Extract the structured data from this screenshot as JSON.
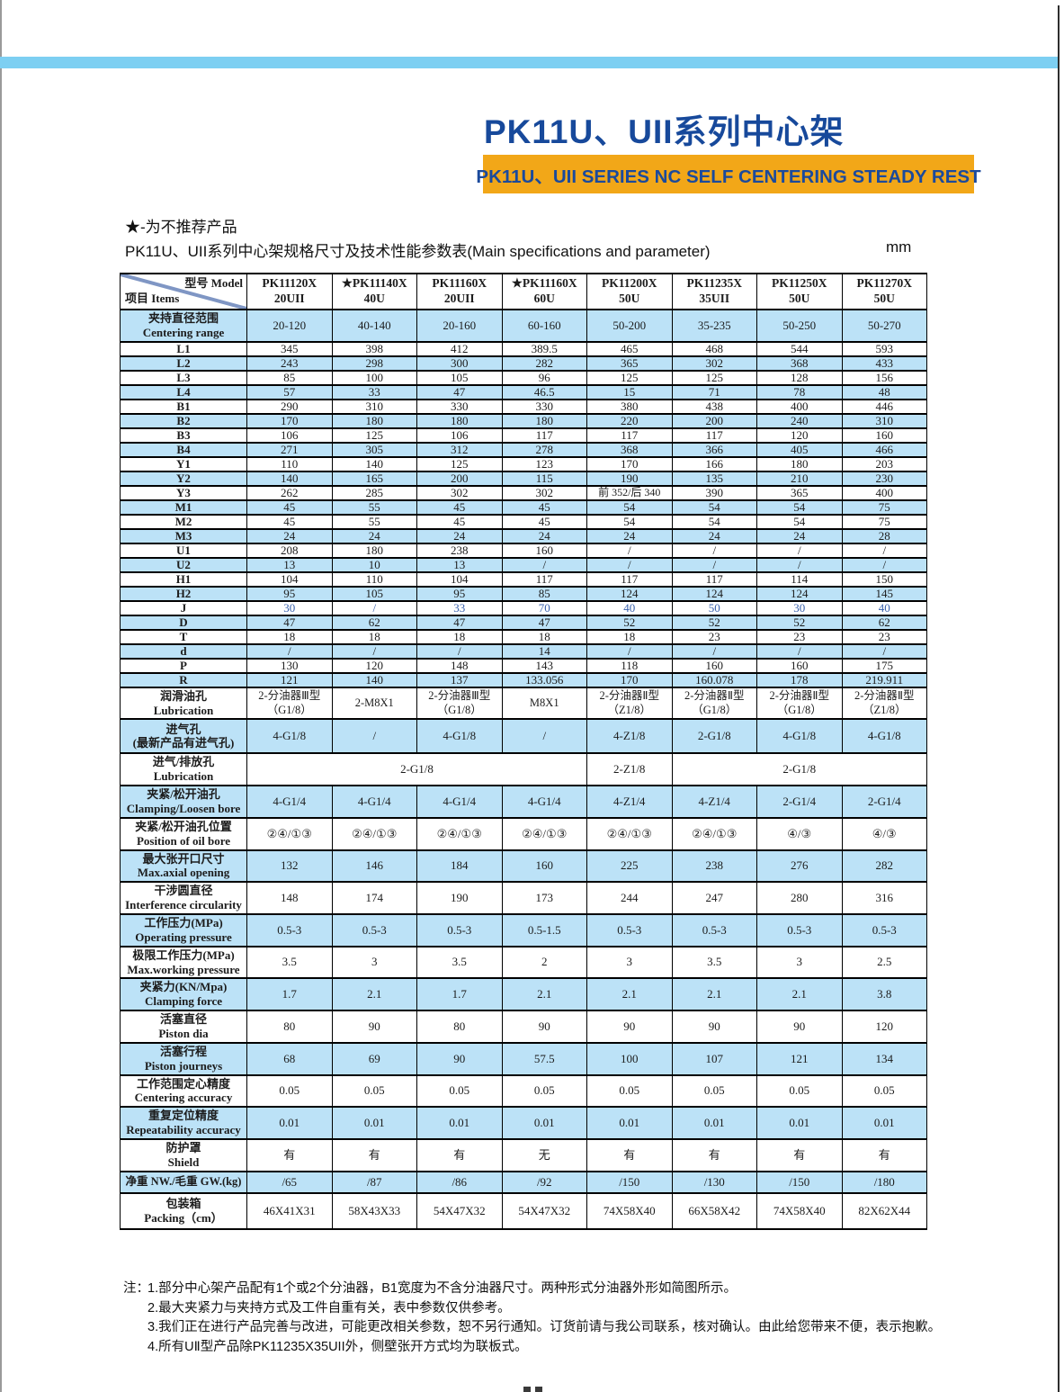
{
  "header": {
    "title_zh": "PK11U、UII系列中心架",
    "title_en": "PK11U、UII SERIES NC SELF CENTERING STEADY REST"
  },
  "page": {
    "star_note": "★-为不推荐产品",
    "caption": "PK11U、UII系列中心架规格尺寸及技术性能参数表(Main specifications and parameter)",
    "unit": "mm"
  },
  "colors": {
    "title_blue": "#17499B",
    "banner_orange": "#F2A718",
    "accent_bar_blue": "#7DCFF2",
    "row_blue": "#BCE2F7",
    "j_value_blue": "#3A62AE"
  },
  "table": {
    "corner": {
      "model": "型号 Model",
      "items": "项目 Items"
    },
    "models": [
      [
        "PK11120X",
        "20UII"
      ],
      [
        "★PK11140X",
        "40U"
      ],
      [
        "PK11160X",
        "20UII"
      ],
      [
        "★PK11160X",
        "60U"
      ],
      [
        "PK11200X",
        "50U"
      ],
      [
        "PK11235X",
        "35UII"
      ],
      [
        "PK11250X",
        "50U"
      ],
      [
        "PK11270X",
        "50U"
      ]
    ],
    "rows": [
      {
        "label": [
          "夹持直径范围",
          "Centering range"
        ],
        "shade": "blue",
        "cls": "tall",
        "values": [
          "20-120",
          "40-140",
          "20-160",
          "60-160",
          "50-200",
          "35-235",
          "50-250",
          "50-270"
        ]
      },
      {
        "label": [
          "L1"
        ],
        "shade": "white",
        "compact": true,
        "values": [
          "345",
          "398",
          "412",
          "389.5",
          "465",
          "468",
          "544",
          "593"
        ]
      },
      {
        "label": [
          "L2"
        ],
        "shade": "blue",
        "compact": true,
        "values": [
          "243",
          "298",
          "300",
          "282",
          "365",
          "302",
          "368",
          "433"
        ]
      },
      {
        "label": [
          "L3"
        ],
        "shade": "white",
        "compact": true,
        "values": [
          "85",
          "100",
          "105",
          "96",
          "125",
          "125",
          "128",
          "156"
        ]
      },
      {
        "label": [
          "L4"
        ],
        "shade": "blue",
        "compact": true,
        "values": [
          "57",
          "33",
          "47",
          "46.5",
          "15",
          "71",
          "78",
          "48"
        ]
      },
      {
        "label": [
          "B1"
        ],
        "shade": "white",
        "compact": true,
        "values": [
          "290",
          "310",
          "330",
          "330",
          "380",
          "438",
          "400",
          "446"
        ]
      },
      {
        "label": [
          "B2"
        ],
        "shade": "blue",
        "compact": true,
        "values": [
          "170",
          "180",
          "180",
          "180",
          "220",
          "200",
          "240",
          "310"
        ]
      },
      {
        "label": [
          "B3"
        ],
        "shade": "white",
        "compact": true,
        "values": [
          "106",
          "125",
          "106",
          "117",
          "117",
          "117",
          "120",
          "160"
        ]
      },
      {
        "label": [
          "B4"
        ],
        "shade": "blue",
        "compact": true,
        "values": [
          "271",
          "305",
          "312",
          "278",
          "368",
          "366",
          "405",
          "466"
        ]
      },
      {
        "label": [
          "Y1"
        ],
        "shade": "white",
        "compact": true,
        "values": [
          "110",
          "140",
          "125",
          "123",
          "170",
          "166",
          "180",
          "203"
        ]
      },
      {
        "label": [
          "Y2"
        ],
        "shade": "blue",
        "compact": true,
        "values": [
          "140",
          "165",
          "200",
          "115",
          "190",
          "135",
          "210",
          "230"
        ]
      },
      {
        "label": [
          "Y3"
        ],
        "shade": "white",
        "compact": true,
        "values": [
          "262",
          "285",
          "302",
          "302",
          "前 352/后 340",
          "390",
          "365",
          "400"
        ]
      },
      {
        "label": [
          "M1"
        ],
        "shade": "blue",
        "compact": true,
        "values": [
          "45",
          "55",
          "45",
          "45",
          "54",
          "54",
          "54",
          "75"
        ]
      },
      {
        "label": [
          "M2"
        ],
        "shade": "white",
        "compact": true,
        "values": [
          "45",
          "55",
          "45",
          "45",
          "54",
          "54",
          "54",
          "75"
        ]
      },
      {
        "label": [
          "M3"
        ],
        "shade": "blue",
        "compact": true,
        "values": [
          "24",
          "24",
          "24",
          "24",
          "24",
          "24",
          "24",
          "28"
        ]
      },
      {
        "label": [
          "U1"
        ],
        "shade": "white",
        "compact": true,
        "values": [
          "208",
          "180",
          "238",
          "160",
          "/",
          "/",
          "/",
          "/"
        ]
      },
      {
        "label": [
          "U2"
        ],
        "shade": "blue",
        "compact": true,
        "values": [
          "13",
          "10",
          "13",
          "/",
          "/",
          "/",
          "/",
          "/"
        ]
      },
      {
        "label": [
          "H1"
        ],
        "shade": "white",
        "compact": true,
        "values": [
          "104",
          "110",
          "104",
          "117",
          "117",
          "117",
          "114",
          "150"
        ]
      },
      {
        "label": [
          "H2"
        ],
        "shade": "blue",
        "compact": true,
        "values": [
          "95",
          "105",
          "95",
          "85",
          "124",
          "124",
          "124",
          "145"
        ]
      },
      {
        "label": [
          "J"
        ],
        "shade": "white",
        "compact": true,
        "value_class": "blue-val",
        "values": [
          "30",
          "/",
          "33",
          "70",
          "40",
          "50",
          "30",
          "40"
        ]
      },
      {
        "label": [
          "D"
        ],
        "shade": "blue",
        "compact": true,
        "values": [
          "47",
          "62",
          "47",
          "47",
          "52",
          "52",
          "52",
          "62"
        ]
      },
      {
        "label": [
          "T"
        ],
        "shade": "white",
        "compact": true,
        "values": [
          "18",
          "18",
          "18",
          "18",
          "18",
          "23",
          "23",
          "23"
        ]
      },
      {
        "label": [
          "d"
        ],
        "shade": "blue",
        "compact": true,
        "values": [
          "/",
          "/",
          "/",
          "14",
          "/",
          "/",
          "/",
          "/"
        ]
      },
      {
        "label": [
          "P"
        ],
        "shade": "white",
        "compact": true,
        "values": [
          "130",
          "120",
          "148",
          "143",
          "118",
          "160",
          "160",
          "175"
        ]
      },
      {
        "label": [
          "R"
        ],
        "shade": "blue",
        "compact": true,
        "values": [
          "121",
          "140",
          "137",
          "133.056",
          "170",
          "160.078",
          "178",
          "219.911"
        ]
      },
      {
        "label": [
          "润滑油孔",
          "Lubrication"
        ],
        "shade": "white",
        "cls": "tall r-lub",
        "values": [
          "2-分油器Ⅲ型\n（G1/8）",
          "2-M8X1",
          "2-分油器Ⅲ型\n（G1/8）",
          "M8X1",
          "2-分油器Ⅱ型\n（Z1/8）",
          "2-分油器Ⅱ型\n（G1/8）",
          "2-分油器Ⅱ型\n（G1/8）",
          "2-分油器Ⅱ型\n（Z1/8）"
        ]
      },
      {
        "label": [
          "进气孔",
          "(最新产品有进气孔)"
        ],
        "shade": "blue",
        "cls": "r-intake",
        "values": [
          "4-G1/8",
          "/",
          "4-G1/8",
          "/",
          "4-Z1/8",
          "2-G1/8",
          "4-G1/8",
          "4-G1/8"
        ]
      },
      {
        "label": [
          "进气/排放孔",
          "Lubrication"
        ],
        "shade": "white",
        "cls": "tall",
        "cells": [
          {
            "text": "2-G1/8",
            "span": 4
          },
          {
            "text": "2-Z1/8",
            "span": 1
          },
          {
            "text": "2-G1/8",
            "span": 3
          }
        ]
      },
      {
        "label": [
          "夹紧/松开油孔",
          "Clamping/Loosen bore"
        ],
        "shade": "blue",
        "cls": "tall",
        "values": [
          "4-G1/4",
          "4-G1/4",
          "4-G1/4",
          "4-G1/4",
          "4-Z1/4",
          "4-Z1/4",
          "2-G1/4",
          "2-G1/4"
        ]
      },
      {
        "label": [
          "夹紧/松开油孔位置",
          "Position of oil bore"
        ],
        "shade": "white",
        "cls": "tall",
        "values": [
          "②④/①③",
          "②④/①③",
          "②④/①③",
          "②④/①③",
          "②④/①③",
          "②④/①③",
          "④/③",
          "④/③"
        ]
      },
      {
        "label": [
          "最大张开口尺寸",
          "Max.axial opening"
        ],
        "shade": "blue",
        "cls": "tall",
        "values": [
          "132",
          "146",
          "184",
          "160",
          "225",
          "238",
          "276",
          "282"
        ]
      },
      {
        "label": [
          "干涉圆直径",
          "Interference circularity"
        ],
        "shade": "white",
        "cls": "tall",
        "values": [
          "148",
          "174",
          "190",
          "173",
          "244",
          "247",
          "280",
          "316"
        ]
      },
      {
        "label": [
          "工作压力(MPa)",
          "Operating pressure"
        ],
        "shade": "blue",
        "cls": "tall",
        "values": [
          "0.5-3",
          "0.5-3",
          "0.5-3",
          "0.5-1.5",
          "0.5-3",
          "0.5-3",
          "0.5-3",
          "0.5-3"
        ]
      },
      {
        "label": [
          "极限工作压力(MPa)",
          "Max.working pressure"
        ],
        "shade": "white",
        "cls": "tall",
        "values": [
          "3.5",
          "3",
          "3.5",
          "2",
          "3",
          "3.5",
          "3",
          "2.5"
        ]
      },
      {
        "label": [
          "夹紧力(KN/Mpa)",
          "Clamping force"
        ],
        "shade": "blue",
        "cls": "tall",
        "values": [
          "1.7",
          "2.1",
          "1.7",
          "2.1",
          "2.1",
          "2.1",
          "2.1",
          "3.8"
        ]
      },
      {
        "label": [
          "活塞直径",
          "Piston dia"
        ],
        "shade": "white",
        "cls": "tall",
        "values": [
          "80",
          "90",
          "80",
          "90",
          "90",
          "90",
          "90",
          "120"
        ]
      },
      {
        "label": [
          "活塞行程",
          "Piston journeys"
        ],
        "shade": "blue",
        "cls": "tall",
        "values": [
          "68",
          "69",
          "90",
          "57.5",
          "100",
          "107",
          "121",
          "134"
        ]
      },
      {
        "label": [
          "工作范围定心精度",
          "Centering accuracy"
        ],
        "shade": "white",
        "cls": "r-acc",
        "values": [
          "0.05",
          "0.05",
          "0.05",
          "0.05",
          "0.05",
          "0.05",
          "0.05",
          "0.05"
        ]
      },
      {
        "label": [
          "重复定位精度",
          "Repeatability accuracy"
        ],
        "shade": "blue",
        "cls": "r-acc",
        "values": [
          "0.01",
          "0.01",
          "0.01",
          "0.01",
          "0.01",
          "0.01",
          "0.01",
          "0.01"
        ]
      },
      {
        "label": [
          "防护罩",
          "Shield"
        ],
        "shade": "white",
        "cls": "tall",
        "values": [
          "有",
          "有",
          "有",
          "无",
          "有",
          "有",
          "有",
          "有"
        ]
      },
      {
        "label": [
          "净重 NW./毛重 GW.(kg)"
        ],
        "shade": "blue",
        "cls": "r-weight",
        "values": [
          "/65",
          "/87",
          "/86",
          "/92",
          "/150",
          "/130",
          "/150",
          "/180"
        ]
      },
      {
        "label": [
          "包装箱",
          "Packing（cm）"
        ],
        "shade": "white",
        "cls": "r-packing",
        "values": [
          "46X41X31",
          "58X43X33",
          "54X47X32",
          "54X47X32",
          "74X58X40",
          "66X58X42",
          "74X58X40",
          "82X62X44"
        ]
      }
    ]
  },
  "notes": {
    "label": "注：",
    "items": [
      "1.部分中心架产品配有1个或2个分油器，B1宽度为不含分油器尺寸。两种形式分油器外形如简图所示。",
      "2.最大夹紧力与夹持方式及工件自重有关，表中参数仅供参考。",
      "3.我们正在进行产品完善与改进，可能更改相关参数，恕不另行通知。订货前请与我公司联系，核对确认。由此给您带来不便，表示抱歉。",
      "4.所有UⅡ型产品除PK11235X35UII外，侧壁张开方式均为联板式。"
    ]
  }
}
